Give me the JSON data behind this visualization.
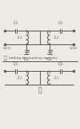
{
  "bg_color": "#ede9e3",
  "line_color": "#5a5650",
  "text_color": "#5a5650",
  "line_width": 0.7,
  "fig_width": 1.0,
  "fig_height": 1.6,
  "dpi": 100
}
